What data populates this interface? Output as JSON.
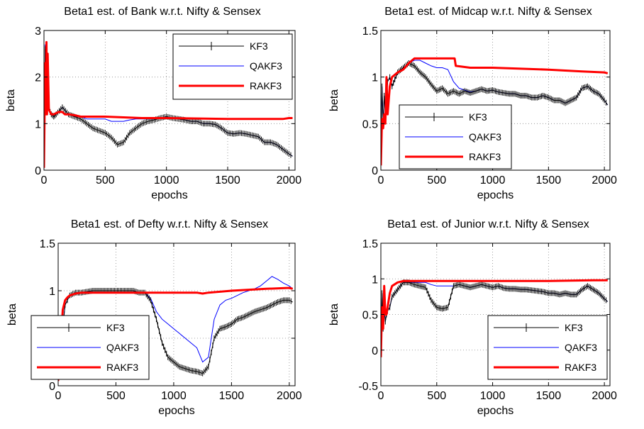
{
  "legend_labels": [
    "KF3",
    "QAKF3",
    "RAKF3"
  ],
  "series_colors": {
    "KF3": "#000000",
    "QAKF3": "#0000ff",
    "RAKF3": "#ff0000"
  },
  "chart_data": [
    {
      "type": "line",
      "title": "Beta1 est. of Bank w.r.t. Nifty & Sensex",
      "xlabel": "epochs",
      "ylabel": "beta",
      "xlim": [
        0,
        2050
      ],
      "ylim": [
        0,
        3
      ],
      "xticks": [
        "0",
        "500",
        "1000",
        "1500",
        "2000"
      ],
      "yticks": [
        "0",
        "1",
        "2",
        "3"
      ],
      "grid": true,
      "legend_position": "top-right",
      "series": [
        {
          "name": "KF3",
          "x": [
            0,
            10,
            20,
            30,
            40,
            50,
            60,
            80,
            100,
            150,
            200,
            250,
            300,
            350,
            400,
            450,
            500,
            550,
            600,
            650,
            700,
            750,
            800,
            850,
            900,
            950,
            1000,
            1050,
            1100,
            1150,
            1200,
            1250,
            1300,
            1350,
            1400,
            1450,
            1500,
            1550,
            1600,
            1650,
            1700,
            1750,
            1800,
            1850,
            1900,
            1950,
            2000,
            2030
          ],
          "y": [
            0.05,
            2.6,
            2.3,
            1.8,
            1.4,
            1.25,
            1.2,
            1.15,
            1.2,
            1.35,
            1.2,
            1.15,
            1.1,
            1.0,
            0.9,
            0.85,
            0.8,
            0.7,
            0.55,
            0.6,
            0.8,
            0.9,
            1.0,
            1.05,
            1.08,
            1.12,
            1.15,
            1.12,
            1.1,
            1.08,
            1.05,
            1.05,
            1.0,
            1.0,
            0.98,
            0.9,
            0.8,
            0.78,
            0.8,
            0.78,
            0.75,
            0.72,
            0.6,
            0.6,
            0.55,
            0.45,
            0.35,
            0.3
          ]
        },
        {
          "name": "QAKF3",
          "x": [
            0,
            10,
            20,
            30,
            40,
            50,
            60,
            80,
            100,
            150,
            200,
            250,
            300,
            350,
            400,
            450,
            500,
            550,
            600,
            650,
            700,
            750,
            800,
            850,
            900,
            950,
            1000,
            1050,
            1100,
            1150,
            1200,
            1250,
            1300,
            1350,
            1400,
            1450,
            1500,
            1550,
            1600,
            1650,
            1700,
            1750,
            1800,
            1850,
            1900,
            1950,
            2000,
            2030
          ],
          "y": [
            0.05,
            2.7,
            2.2,
            1.8,
            1.4,
            1.25,
            1.2,
            1.15,
            1.2,
            1.35,
            1.2,
            1.15,
            1.15,
            1.1,
            1.1,
            1.1,
            1.1,
            1.05,
            1.05,
            1.05,
            1.08,
            1.1,
            1.1,
            1.1,
            1.1,
            1.12,
            1.15,
            1.12,
            1.1,
            1.08,
            1.05,
            1.05,
            1.0,
            1.0,
            0.98,
            0.9,
            0.8,
            0.78,
            0.8,
            0.78,
            0.75,
            0.72,
            0.6,
            0.6,
            0.55,
            0.45,
            0.35,
            0.3
          ]
        },
        {
          "name": "RAKF3",
          "x": [
            0,
            10,
            15,
            20,
            25,
            30,
            40,
            50,
            60,
            80,
            120,
            150,
            170,
            200,
            250,
            300,
            500,
            800,
            1000,
            1500,
            1950,
            2000,
            2030
          ],
          "y": [
            0.05,
            2.3,
            1.2,
            2.75,
            1.2,
            2.5,
            1.3,
            1.25,
            1.2,
            1.2,
            1.25,
            1.25,
            1.2,
            1.2,
            1.18,
            1.15,
            1.15,
            1.12,
            1.12,
            1.1,
            1.1,
            1.12,
            1.12
          ]
        }
      ]
    },
    {
      "type": "line",
      "title": "Beta1 est. of Midcap w.r.t. Nifty & Sensex",
      "xlabel": "epochs",
      "ylabel": "beta",
      "xlim": [
        0,
        2050
      ],
      "ylim": [
        0,
        1.5
      ],
      "xticks": [
        "0",
        "500",
        "1000",
        "1500",
        "2000"
      ],
      "yticks": [
        "0",
        "0.5",
        "1",
        "1.5"
      ],
      "grid": true,
      "legend_position": "bottom-left",
      "series": [
        {
          "name": "KF3",
          "x": [
            0,
            10,
            20,
            30,
            40,
            50,
            60,
            80,
            100,
            150,
            200,
            250,
            300,
            350,
            400,
            450,
            500,
            550,
            600,
            650,
            700,
            750,
            800,
            850,
            900,
            950,
            1000,
            1050,
            1100,
            1150,
            1200,
            1250,
            1300,
            1350,
            1400,
            1450,
            1500,
            1550,
            1600,
            1650,
            1700,
            1750,
            1800,
            1850,
            1900,
            1950,
            2000,
            2030
          ],
          "y": [
            0.05,
            0.9,
            0.5,
            0.8,
            0.6,
            0.7,
            0.95,
            1.0,
            0.9,
            1.05,
            1.1,
            1.15,
            1.12,
            1.05,
            1.0,
            0.92,
            0.85,
            0.88,
            0.82,
            0.85,
            0.82,
            0.85,
            0.83,
            0.85,
            0.87,
            0.85,
            0.86,
            0.84,
            0.83,
            0.82,
            0.82,
            0.8,
            0.8,
            0.78,
            0.78,
            0.8,
            0.78,
            0.75,
            0.75,
            0.72,
            0.75,
            0.78,
            0.88,
            0.9,
            0.85,
            0.82,
            0.75,
            0.7
          ]
        },
        {
          "name": "QAKF3",
          "x": [
            0,
            10,
            20,
            30,
            40,
            50,
            60,
            80,
            100,
            150,
            200,
            250,
            300,
            350,
            400,
            450,
            500,
            550,
            600,
            650,
            700,
            750,
            800,
            850,
            900,
            950,
            1000,
            1050,
            1100,
            1150,
            1200,
            1250,
            1300,
            1350,
            1400,
            1450,
            1500,
            1550,
            1600,
            1650,
            1700,
            1750,
            1800,
            1850,
            1900,
            1950,
            2000,
            2030
          ],
          "y": [
            0.05,
            0.9,
            0.5,
            0.8,
            0.6,
            0.7,
            0.95,
            1.0,
            0.9,
            1.05,
            1.1,
            1.15,
            1.18,
            1.18,
            1.15,
            1.12,
            1.1,
            1.1,
            1.08,
            0.95,
            0.88,
            0.86,
            0.84,
            0.85,
            0.87,
            0.85,
            0.86,
            0.84,
            0.83,
            0.82,
            0.82,
            0.8,
            0.8,
            0.78,
            0.78,
            0.8,
            0.78,
            0.75,
            0.75,
            0.72,
            0.75,
            0.78,
            0.88,
            0.9,
            0.85,
            0.82,
            0.75,
            0.7
          ]
        },
        {
          "name": "RAKF3",
          "x": [
            0,
            10,
            20,
            30,
            40,
            50,
            60,
            80,
            100,
            150,
            200,
            250,
            300,
            350,
            400,
            500,
            600,
            660,
            670,
            800,
            1000,
            1500,
            1800,
            2000,
            2030
          ],
          "y": [
            0.05,
            0.55,
            0.45,
            0.6,
            0.5,
            1.0,
            0.6,
            0.9,
            1.0,
            1.05,
            1.08,
            1.15,
            1.2,
            1.2,
            1.2,
            1.2,
            1.2,
            1.2,
            1.12,
            1.1,
            1.1,
            1.08,
            1.06,
            1.05,
            1.04
          ]
        }
      ]
    },
    {
      "type": "line",
      "title": "Beta1 est. of Defty w.r.t. Nifty & Sensex",
      "xlabel": "epochs",
      "ylabel": "beta",
      "xlim": [
        0,
        2050
      ],
      "ylim": [
        0,
        1.5
      ],
      "xticks": [
        "0",
        "500",
        "1000",
        "1500",
        "2000"
      ],
      "yticks": [
        "0",
        "0.5",
        "1",
        "1.5"
      ],
      "grid": true,
      "legend_position": "bottom-left",
      "series": [
        {
          "name": "KF3",
          "x": [
            0,
            30,
            60,
            80,
            100,
            150,
            200,
            250,
            300,
            350,
            400,
            450,
            500,
            550,
            600,
            650,
            700,
            750,
            800,
            850,
            900,
            950,
            1000,
            1050,
            1100,
            1150,
            1200,
            1250,
            1300,
            1350,
            1400,
            1450,
            1500,
            1550,
            1600,
            1650,
            1700,
            1750,
            1800,
            1850,
            1900,
            1950,
            2000,
            2030
          ],
          "y": [
            0.05,
            0.5,
            0.85,
            0.9,
            0.95,
            0.98,
            0.98,
            0.99,
            1.0,
            1.0,
            1.0,
            1.0,
            1.0,
            1.0,
            1.0,
            1.0,
            0.98,
            0.98,
            0.9,
            0.7,
            0.45,
            0.3,
            0.25,
            0.2,
            0.18,
            0.16,
            0.15,
            0.13,
            0.2,
            0.5,
            0.6,
            0.62,
            0.65,
            0.7,
            0.72,
            0.75,
            0.78,
            0.8,
            0.82,
            0.85,
            0.88,
            0.9,
            0.9,
            0.88
          ]
        },
        {
          "name": "QAKF3",
          "x": [
            0,
            30,
            60,
            80,
            100,
            150,
            200,
            250,
            300,
            350,
            400,
            450,
            500,
            550,
            600,
            650,
            700,
            750,
            800,
            850,
            900,
            950,
            1000,
            1050,
            1100,
            1150,
            1200,
            1250,
            1300,
            1350,
            1400,
            1450,
            1500,
            1550,
            1600,
            1650,
            1700,
            1750,
            1800,
            1850,
            1900,
            1950,
            2000,
            2030
          ],
          "y": [
            0.05,
            0.5,
            0.85,
            0.9,
            0.95,
            0.98,
            0.98,
            0.99,
            1.0,
            1.0,
            1.0,
            1.0,
            1.0,
            1.0,
            1.0,
            1.0,
            0.98,
            0.98,
            0.92,
            0.78,
            0.7,
            0.65,
            0.6,
            0.55,
            0.5,
            0.45,
            0.4,
            0.25,
            0.3,
            0.7,
            0.85,
            0.9,
            0.92,
            0.95,
            0.98,
            1.0,
            1.02,
            1.05,
            1.1,
            1.15,
            1.12,
            1.08,
            1.05,
            1.02
          ]
        },
        {
          "name": "RAKF3",
          "x": [
            0,
            40,
            60,
            80,
            100,
            150,
            200,
            300,
            500,
            700,
            800,
            1000,
            1200,
            1250,
            1300,
            1500,
            1800,
            2000,
            2030
          ],
          "y": [
            0.05,
            0.8,
            0.9,
            0.93,
            0.95,
            0.97,
            0.98,
            0.98,
            0.98,
            0.98,
            0.98,
            0.98,
            0.98,
            0.97,
            0.98,
            1.0,
            1.02,
            1.03,
            1.02
          ]
        }
      ]
    },
    {
      "type": "line",
      "title": "Beta1 est. of Junior w.r.t. Nifty & Sensex",
      "xlabel": "epochs",
      "ylabel": "beta",
      "xlim": [
        0,
        2050
      ],
      "ylim": [
        -0.5,
        1.5
      ],
      "xticks": [
        "0",
        "500",
        "1000",
        "1500",
        "2000"
      ],
      "yticks": [
        "-0.5",
        "0",
        "0.5",
        "1",
        "1.5"
      ],
      "grid": true,
      "legend_position": "bottom-right",
      "series": [
        {
          "name": "KF3",
          "x": [
            0,
            10,
            20,
            30,
            40,
            50,
            60,
            80,
            100,
            150,
            200,
            250,
            300,
            350,
            400,
            450,
            500,
            550,
            600,
            650,
            700,
            750,
            800,
            850,
            900,
            950,
            1000,
            1050,
            1100,
            1150,
            1200,
            1250,
            1300,
            1350,
            1400,
            1450,
            1500,
            1550,
            1600,
            1650,
            1700,
            1750,
            1800,
            1850,
            1900,
            1950,
            2000,
            2030
          ],
          "y": [
            -0.1,
            0.8,
            0.3,
            0.6,
            0.4,
            0.5,
            0.55,
            0.6,
            0.75,
            0.85,
            0.95,
            0.95,
            0.92,
            0.9,
            0.88,
            0.7,
            0.6,
            0.58,
            0.6,
            0.9,
            0.92,
            0.9,
            0.88,
            0.9,
            0.92,
            0.9,
            0.88,
            0.9,
            0.87,
            0.86,
            0.86,
            0.85,
            0.85,
            0.84,
            0.83,
            0.82,
            0.8,
            0.8,
            0.78,
            0.8,
            0.78,
            0.78,
            0.85,
            0.9,
            0.85,
            0.8,
            0.72,
            0.68
          ]
        },
        {
          "name": "QAKF3",
          "x": [
            0,
            10,
            20,
            30,
            40,
            50,
            60,
            80,
            100,
            150,
            200,
            250,
            300,
            350,
            400,
            450,
            500,
            550,
            600,
            650,
            700,
            750,
            800,
            850,
            900,
            950,
            1000,
            1050,
            1100,
            1150,
            1200,
            1250,
            1300,
            1350,
            1400,
            1450,
            1500,
            1550,
            1600,
            1650,
            1700,
            1750,
            1800,
            1850,
            1900,
            1950,
            2000,
            2030
          ],
          "y": [
            -0.1,
            0.8,
            0.3,
            0.6,
            0.4,
            0.5,
            0.55,
            0.6,
            0.75,
            0.85,
            0.95,
            0.95,
            0.95,
            0.95,
            0.95,
            0.92,
            0.9,
            0.9,
            0.9,
            0.9,
            0.92,
            0.9,
            0.88,
            0.9,
            0.92,
            0.9,
            0.88,
            0.9,
            0.87,
            0.86,
            0.86,
            0.85,
            0.85,
            0.84,
            0.83,
            0.82,
            0.8,
            0.8,
            0.78,
            0.8,
            0.78,
            0.78,
            0.85,
            0.9,
            0.85,
            0.8,
            0.72,
            0.68
          ]
        },
        {
          "name": "RAKF3",
          "x": [
            0,
            10,
            20,
            30,
            40,
            50,
            60,
            80,
            100,
            150,
            200,
            300,
            500,
            800,
            1000,
            1500,
            1900,
            2000,
            2030
          ],
          "y": [
            -0.1,
            0.6,
            0.3,
            0.9,
            0.5,
            0.5,
            0.6,
            0.8,
            0.9,
            0.95,
            0.97,
            0.97,
            0.97,
            0.97,
            0.97,
            0.97,
            0.98,
            0.98,
            0.98
          ]
        }
      ]
    }
  ]
}
